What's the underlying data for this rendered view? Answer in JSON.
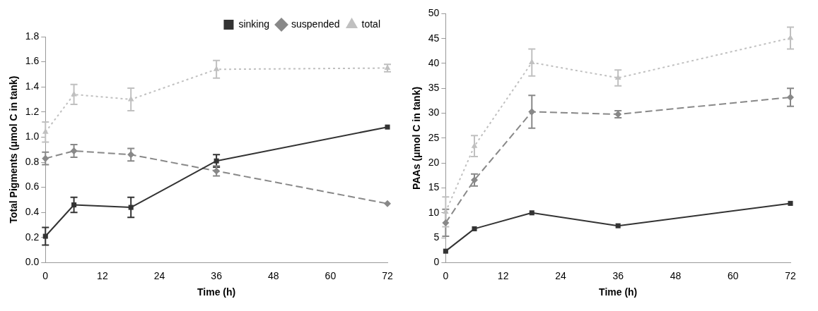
{
  "chart_data": [
    {
      "type": "line",
      "xlabel": "Time (h)",
      "ylabel": "Total Pigments (μmol C in tank)",
      "x": [
        0,
        6,
        18,
        36,
        72
      ],
      "xlim": [
        0,
        72
      ],
      "xticks": [
        0,
        12,
        24,
        36,
        48,
        60,
        72
      ],
      "ylim": [
        0,
        1.8
      ],
      "yticks": [
        {
          "value": 0,
          "label": "0.0"
        },
        0.2,
        0.4,
        0.6,
        0.8,
        {
          "value": 1,
          "label": "1.0"
        },
        1.2,
        1.4,
        1.6,
        1.8
      ],
      "grid": false,
      "legend": "top right",
      "series": [
        {
          "name": "sinking",
          "color": "#333333",
          "marker": "square",
          "line_style": "solid",
          "values": [
            0.21,
            0.46,
            0.44,
            0.81,
            1.08
          ],
          "errors": [
            0.07,
            0.06,
            0.08,
            0.05,
            null
          ]
        },
        {
          "name": "suspended",
          "color": "#888888",
          "marker": "diamond",
          "line_style": "dashed",
          "values": [
            0.83,
            0.89,
            0.86,
            0.73,
            0.47
          ],
          "errors": [
            0.05,
            0.05,
            0.05,
            0.04,
            null
          ]
        },
        {
          "name": "total",
          "color": "#c0c0c0",
          "marker": "triangle",
          "line_style": "dotted",
          "values": [
            1.04,
            1.34,
            1.3,
            1.54,
            1.55
          ],
          "errors": [
            0.08,
            0.08,
            0.09,
            0.07,
            0.03
          ]
        }
      ]
    },
    {
      "type": "line",
      "xlabel": "Time (h)",
      "ylabel": "PAAs (μmol C in tank)",
      "x": [
        0,
        6,
        18,
        36,
        72
      ],
      "xlim": [
        0,
        72
      ],
      "xticks": [
        0,
        12,
        24,
        36,
        48,
        60,
        72
      ],
      "ylim": [
        0,
        50
      ],
      "yticks": [
        0,
        5,
        10,
        15,
        20,
        25,
        30,
        35,
        40,
        45,
        50
      ],
      "grid": false,
      "series": [
        {
          "color": "#333333",
          "marker": "square",
          "line_style": "solid",
          "values": [
            2.3,
            6.8,
            10,
            7.4,
            11.9
          ]
        },
        {
          "color": "#888888",
          "marker": "diamond",
          "line_style": "dashed",
          "values": [
            8,
            16.6,
            30.3,
            29.8,
            33.2
          ],
          "errors": [
            2.7,
            1.2,
            3.3,
            0.7,
            1.8
          ]
        },
        {
          "color": "#c0c0c0",
          "marker": "triangle",
          "line_style": "dotted",
          "values": [
            10.2,
            23.4,
            40.2,
            37.1,
            45.1
          ],
          "errors": [
            3,
            2.1,
            2.7,
            1.6,
            2.2
          ]
        }
      ]
    }
  ]
}
